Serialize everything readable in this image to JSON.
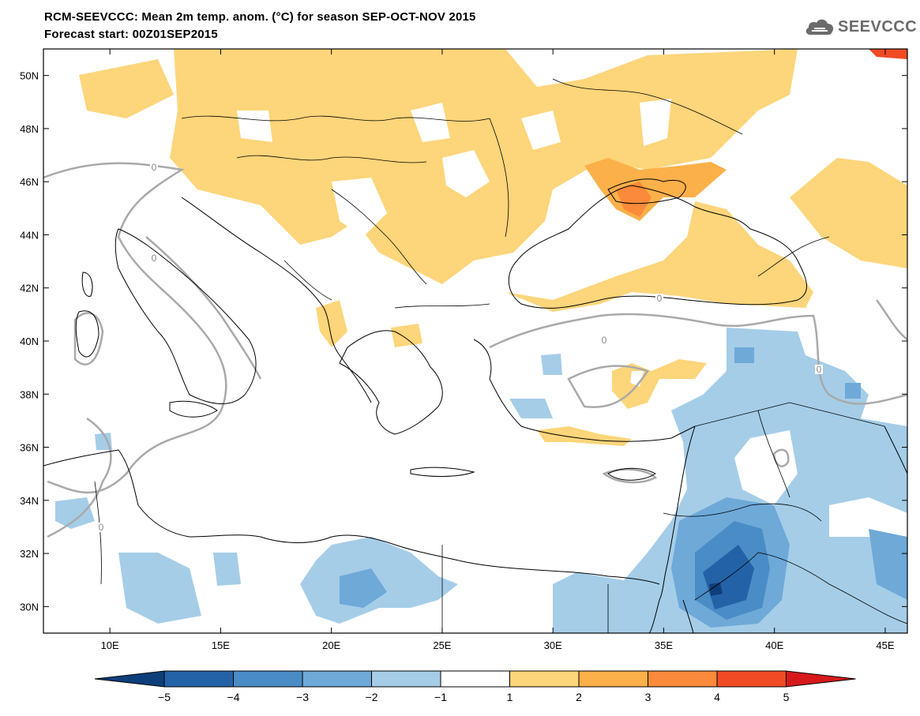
{
  "header": {
    "title": "RCM-SEEVCCC: Mean 2m temp. anom. (°C) for season SEP-OCT-NOV 2015",
    "subtitle": "Forecast start: 00Z01SEP2015",
    "logo_text": "SEEVCCC"
  },
  "map": {
    "lat_range": [
      29,
      51
    ],
    "lon_range": [
      7,
      46
    ],
    "lat_ticks": [
      {
        "value": 50,
        "label": "50N"
      },
      {
        "value": 48,
        "label": "48N"
      },
      {
        "value": 46,
        "label": "46N"
      },
      {
        "value": 44,
        "label": "44N"
      },
      {
        "value": 42,
        "label": "42N"
      },
      {
        "value": 40,
        "label": "40N"
      },
      {
        "value": 38,
        "label": "38N"
      },
      {
        "value": 36,
        "label": "36N"
      },
      {
        "value": 34,
        "label": "34N"
      },
      {
        "value": 32,
        "label": "32N"
      },
      {
        "value": 30,
        "label": "30N"
      }
    ],
    "lon_ticks": [
      {
        "value": 10,
        "label": "10E"
      },
      {
        "value": 15,
        "label": "15E"
      },
      {
        "value": 20,
        "label": "20E"
      },
      {
        "value": 25,
        "label": "25E"
      },
      {
        "value": 30,
        "label": "30E"
      },
      {
        "value": 35,
        "label": "35E"
      },
      {
        "value": 40,
        "label": "40E"
      },
      {
        "value": 45,
        "label": "45E"
      }
    ],
    "contour_label": "0"
  },
  "colorbar": {
    "labels": [
      "−5",
      "−4",
      "−3",
      "−2",
      "−1",
      "1",
      "2",
      "3",
      "4",
      "5"
    ],
    "colors": {
      "below_min": "#0d3f7a",
      "n5_n4": "#2462a8",
      "n4_n3": "#4a8cc6",
      "n3_n2": "#6ea9d8",
      "n2_n1": "#a5cde8",
      "n1_p1": "#ffffff",
      "p1_p2": "#fdd57a",
      "p2_p3": "#fcb04a",
      "p3_p4": "#fb8a3a",
      "p4_p5": "#f04b25",
      "above_max": "#d7191c"
    }
  }
}
